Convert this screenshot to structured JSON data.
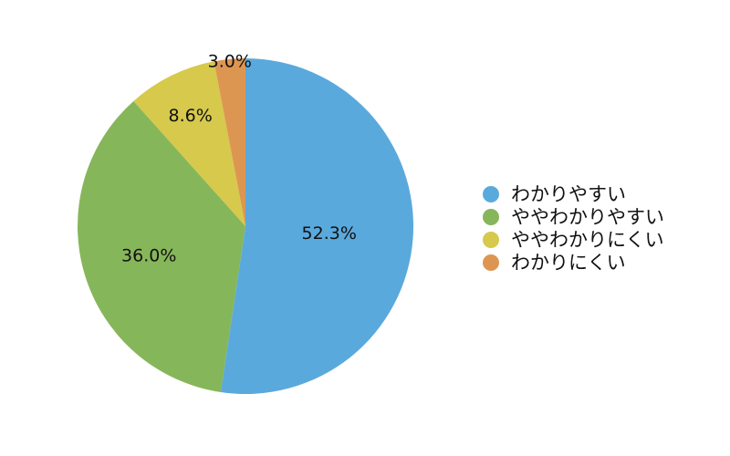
{
  "chart_data": {
    "type": "pie",
    "title": "",
    "labels": [
      "わかりやすい",
      "ややわかりやすい",
      "ややわかりにくい",
      "わかりにくい"
    ],
    "values": [
      52.3,
      36.0,
      8.6,
      3.0
    ],
    "value_labels": [
      "52.3%",
      "36.0%",
      "8.6%",
      "3.0%"
    ],
    "colors": [
      "#5aa9dd",
      "#86b65a",
      "#d6c94c",
      "#dd9651"
    ],
    "start_angle": "12 o'clock",
    "direction": "clockwise",
    "legend_position": "right"
  }
}
